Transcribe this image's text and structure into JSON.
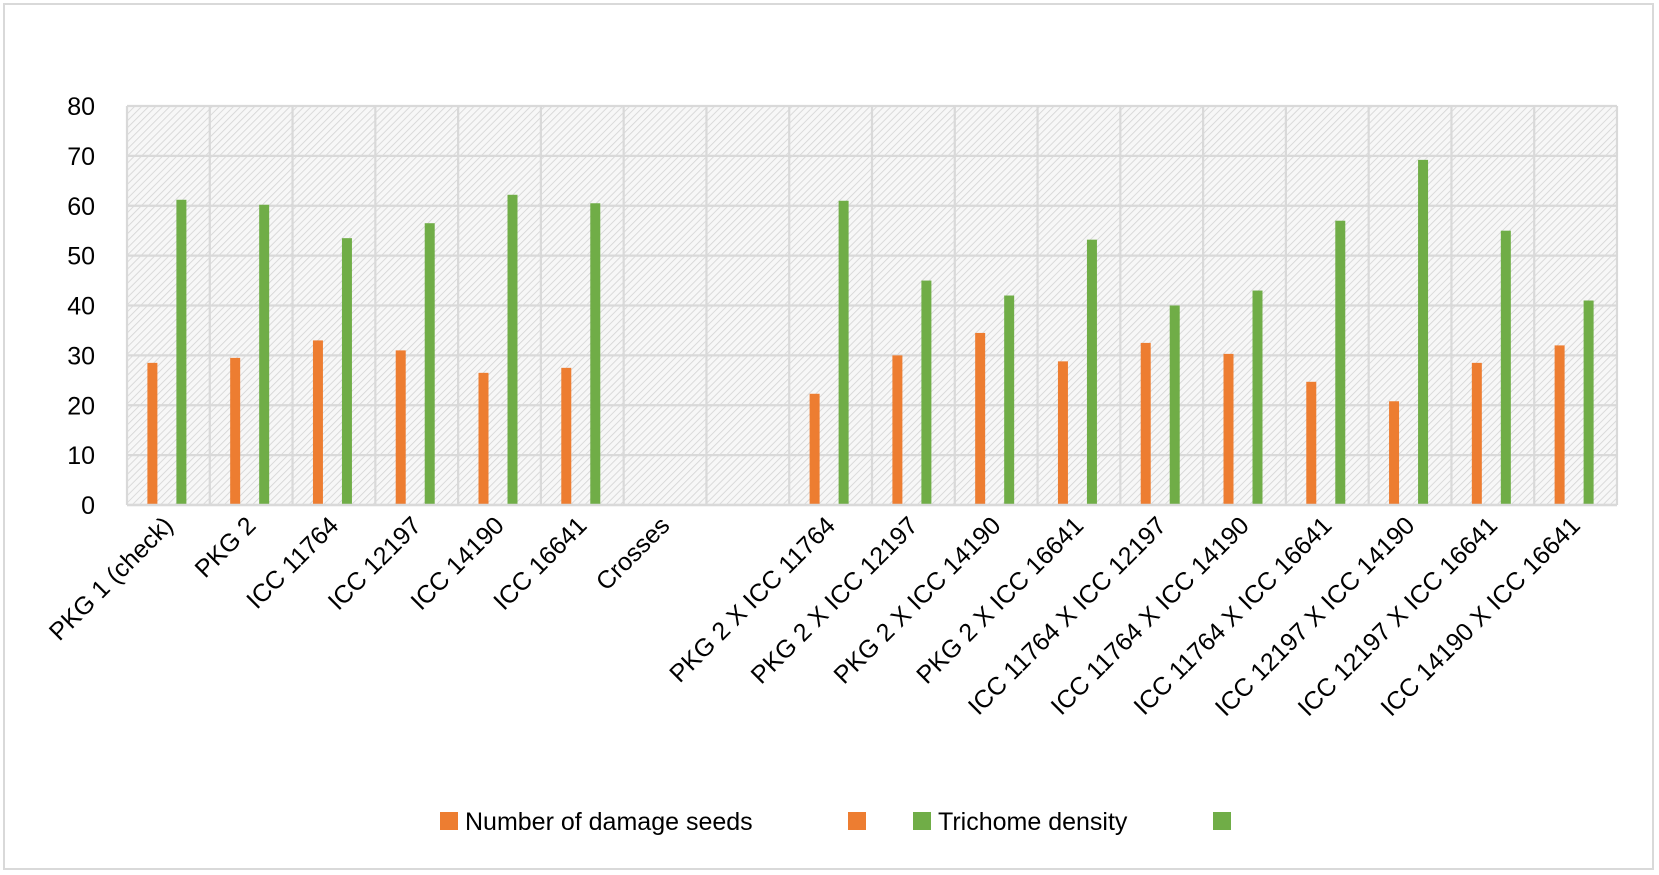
{
  "chart_data": {
    "type": "bar",
    "title": "",
    "xlabel": "",
    "ylabel": "",
    "ylim": [
      0,
      80
    ],
    "yticks": [
      0,
      10,
      20,
      30,
      40,
      50,
      60,
      70,
      80
    ],
    "grid": true,
    "plot_background": "hatched light gray",
    "legend_position": "bottom",
    "categories": [
      "PKG 1 (check)",
      "PKG 2",
      "ICC 11764",
      "ICC 12197",
      "ICC 14190",
      "ICC 16641",
      "Crosses",
      "",
      "PKG 2 X ICC 11764",
      "PKG 2 X ICC 12197",
      "PKG 2 X ICC 14190",
      "PKG 2 X ICC 16641",
      "ICC 11764 X ICC 12197",
      "ICC 11764 X ICC 14190",
      "ICC 11764 X ICC 16641",
      "ICC 12197 X ICC 14190",
      "ICC 12197 X ICC 16641",
      "ICC 14190 X ICC 16641"
    ],
    "series": [
      {
        "name": "Number of damage seeds",
        "color": "#ed7d31",
        "values": [
          28.5,
          29.5,
          33,
          31,
          26.5,
          27.5,
          null,
          null,
          22.3,
          30,
          34.5,
          28.8,
          32.5,
          30.3,
          24.7,
          20.8,
          28.5,
          32
        ]
      },
      {
        "name": "Trichome density",
        "color": "#70ad47",
        "values": [
          61.2,
          60.2,
          53.5,
          56.5,
          62.2,
          60.5,
          null,
          null,
          61,
          45,
          42,
          53.2,
          40,
          43,
          57,
          69.2,
          55,
          41
        ]
      }
    ],
    "legend": [
      {
        "label": "Number of damage seeds",
        "color": "#ed7d31"
      },
      {
        "label": "",
        "color": "#ed7d31"
      },
      {
        "label": "Trichome density",
        "color": "#70ad47"
      },
      {
        "label": "",
        "color": "#70ad47"
      }
    ]
  }
}
